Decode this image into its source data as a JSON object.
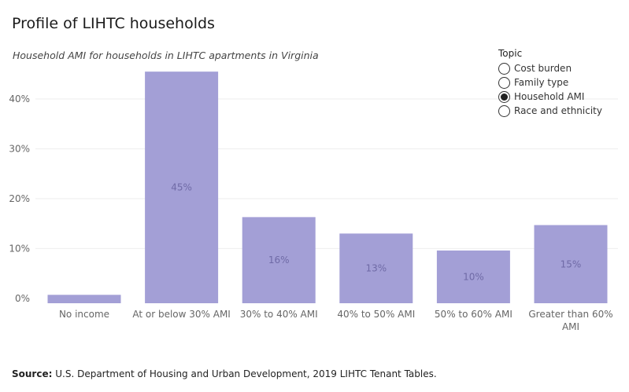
{
  "title": "Profile of LIHTC households",
  "subtitle": "Household AMI for households in LIHTC apartments in Virginia",
  "legend": {
    "title": "Topic",
    "options": [
      "Cost burden",
      "Family type",
      "Household AMI",
      "Race and ethnicity"
    ],
    "selected": "Household AMI"
  },
  "source": {
    "label": "Source:",
    "text": "U.S. Department of Housing and Urban Development, 2019 LIHTC Tenant Tables."
  },
  "chart_data": {
    "type": "bar",
    "categories": [
      "No income",
      "At or below 30% AMI",
      "30% to 40% AMI",
      "40% to 50% AMI",
      "50% to 60% AMI",
      "Greater than 60% AMI"
    ],
    "values": [
      0.7,
      45.5,
      16.3,
      13,
      9.6,
      14.7
    ],
    "data_labels": [
      "",
      "45%",
      "16%",
      "13%",
      "10%",
      "15%"
    ],
    "y_ticks": [
      0,
      10,
      20,
      30,
      40
    ],
    "y_tick_labels": [
      "0%",
      "10%",
      "20%",
      "30%",
      "40%"
    ],
    "ylim": [
      -1.3,
      46
    ],
    "grid": true,
    "bar_color": "#a39fd6",
    "label_color": "#6f6aa6"
  }
}
